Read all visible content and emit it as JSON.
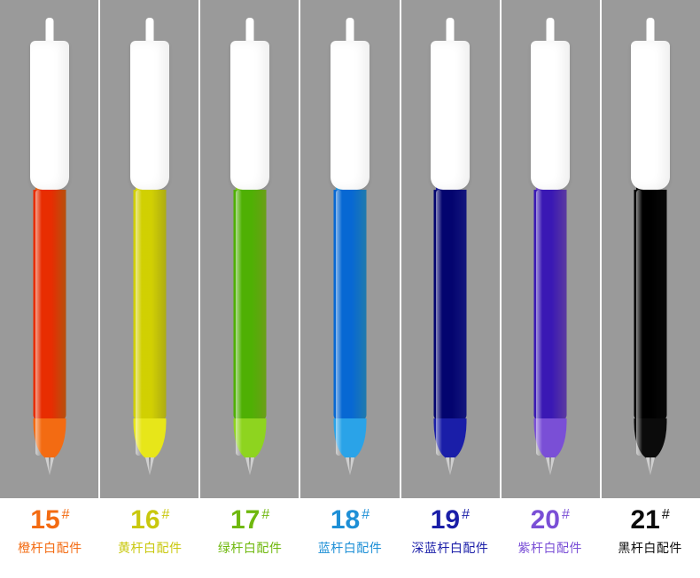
{
  "background_color": "#9a9a9a",
  "divider_color": "#ffffff",
  "clip_color": "#ffffff",
  "nib_color": "#cfcfcf",
  "hash_symbol": "#",
  "pens": [
    {
      "number": "15",
      "desc": "橙杆白配件",
      "barrel_color": "#f36b12",
      "label_color": "#f36b12"
    },
    {
      "number": "16",
      "desc": "黄杆白配件",
      "barrel_color": "#e7e619",
      "label_color": "#c9c80e"
    },
    {
      "number": "17",
      "desc": "绿杆白配件",
      "barrel_color": "#8ed41f",
      "label_color": "#6fb80e"
    },
    {
      "number": "18",
      "desc": "蓝杆白配件",
      "barrel_color": "#2aa3e8",
      "label_color": "#1d8fd6"
    },
    {
      "number": "19",
      "desc": "深蓝杆白配件",
      "barrel_color": "#1a1ea8",
      "label_color": "#1a1ea8"
    },
    {
      "number": "20",
      "desc": "紫杆白配件",
      "barrel_color": "#7a4fd6",
      "label_color": "#7a4fd6"
    },
    {
      "number": "21",
      "desc": "黑杆白配件",
      "barrel_color": "#0b0b0b",
      "label_color": "#0b0b0b"
    }
  ]
}
